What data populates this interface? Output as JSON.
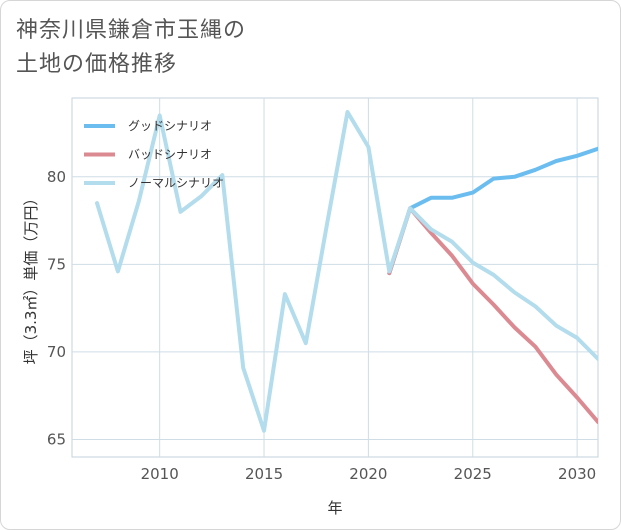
{
  "title": {
    "line1": "神奈川県鎌倉市玉縄の",
    "line2": "土地の価格推移"
  },
  "chart_data": {
    "type": "line",
    "xlabel": "年",
    "ylabel": "坪（3.3㎡）単価（万円）",
    "xlim": [
      2005.8,
      2031.0
    ],
    "ylim": [
      64.0,
      84.5
    ],
    "xticks": [
      2010,
      2015,
      2020,
      2025,
      2030
    ],
    "yticks": [
      65,
      70,
      75,
      80
    ],
    "grid": true,
    "legend_position": "top-left",
    "series": [
      {
        "name": "グッドシナリオ",
        "color": "#6bbdf0",
        "x": [
          2021,
          2022,
          2023,
          2024,
          2025,
          2026,
          2027,
          2028,
          2029,
          2030,
          2031
        ],
        "y": [
          74.5,
          78.2,
          78.8,
          78.8,
          79.1,
          79.9,
          80.0,
          80.4,
          80.9,
          81.2,
          81.6
        ]
      },
      {
        "name": "バッドシナリオ",
        "color": "#db8a92",
        "x": [
          2021,
          2022,
          2023,
          2024,
          2025,
          2026,
          2027,
          2028,
          2029,
          2030,
          2031
        ],
        "y": [
          74.5,
          78.2,
          76.8,
          75.5,
          73.9,
          72.7,
          71.4,
          70.3,
          68.7,
          67.4,
          66.0
        ]
      },
      {
        "name": "ノーマルシナリオ",
        "color": "#b3dcec",
        "x": [
          2007,
          2008,
          2009,
          2010,
          2011,
          2012,
          2013,
          2014,
          2015,
          2016,
          2017,
          2018,
          2019,
          2020,
          2021,
          2022,
          2023,
          2024,
          2025,
          2026,
          2027,
          2028,
          2029,
          2030,
          2031
        ],
        "y": [
          78.5,
          74.6,
          78.6,
          83.5,
          78.0,
          78.9,
          80.1,
          69.1,
          65.5,
          73.3,
          70.5,
          77.2,
          83.7,
          81.7,
          74.6,
          78.2,
          77.0,
          76.3,
          75.1,
          74.4,
          73.4,
          72.6,
          71.5,
          70.8,
          69.6
        ]
      }
    ]
  }
}
